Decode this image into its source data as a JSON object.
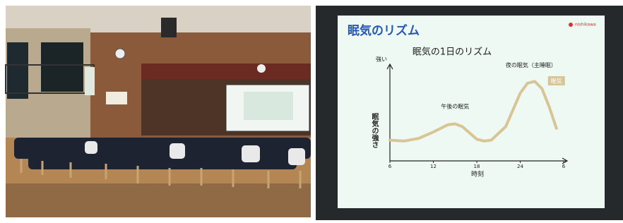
{
  "slide": {
    "title": "眠気のリズム",
    "logo": "nishikawa"
  },
  "chart_data": {
    "type": "line",
    "title": "眠気の1日のリズム",
    "y_top_label": "強い",
    "ylabel": "眠気の強さ",
    "xlabel": "時刻",
    "annotations": [
      "午後の眠気",
      "夜の眠気（主睡眠）"
    ],
    "xlim": [
      6,
      30
    ],
    "xticks": [
      6,
      12,
      18,
      24,
      {
        "value": 30,
        "label": "6"
      }
    ],
    "ylim": [
      0,
      10
    ],
    "series": [
      {
        "name": "眠気",
        "color": "#d8c596",
        "x": [
          6,
          8,
          10,
          12,
          14,
          15,
          16,
          18,
          19,
          20,
          22,
          24,
          25,
          26,
          27,
          28,
          29
        ],
        "values": [
          2.3,
          2.2,
          2.5,
          3.2,
          4.0,
          4.1,
          3.8,
          2.4,
          2.2,
          2.3,
          3.8,
          7.5,
          8.6,
          8.8,
          8.0,
          6.0,
          3.6
        ]
      }
    ]
  }
}
